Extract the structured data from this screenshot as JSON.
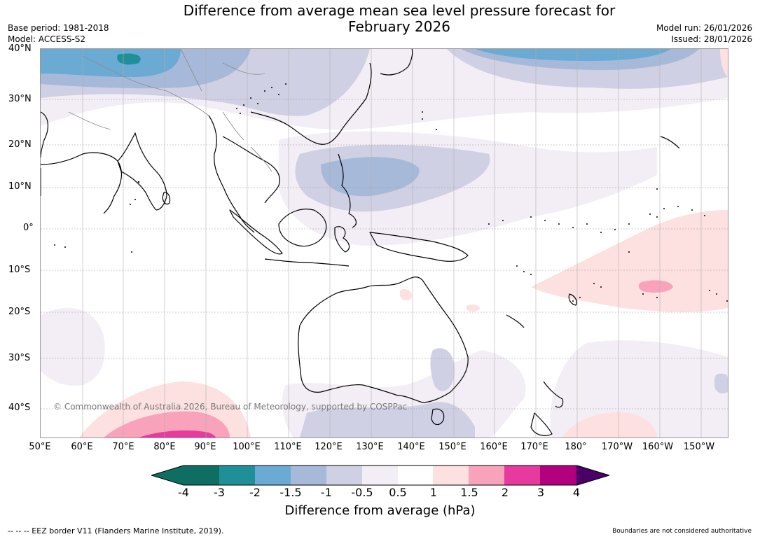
{
  "title": {
    "line1": "Difference from average mean sea level pressure forecast for",
    "line2": "February 2026"
  },
  "meta": {
    "base_period": "Base period: 1981-2018",
    "model": "Model: ACCESS-S2",
    "model_run": "Model run: 26/01/2026",
    "issued": "Issued: 28/01/2026"
  },
  "map": {
    "lat_labels": [
      "40°N",
      "30°N",
      "20°N",
      "10°N",
      "0°",
      "10°S",
      "20°S",
      "30°S",
      "40°S"
    ],
    "lon_labels": [
      "50°E",
      "60°E",
      "70°E",
      "80°E",
      "90°E",
      "100°E",
      "110°E",
      "120°E",
      "130°E",
      "140°E",
      "150°E",
      "160°E",
      "170°E",
      "180°",
      "170°W",
      "160°W",
      "150°W"
    ],
    "copyright": "© Commonwealth of Australia 2026, Bureau of Meteorology, supported by COSPPac",
    "colors": {
      "neg4": "#0e6e62",
      "neg3": "#1f8f98",
      "neg2": "#6aaad3",
      "neg15": "#a6b9d9",
      "neg1": "#cfd0e4",
      "neg05": "#f3eef5",
      "zero": "#ffffff",
      "pos05": "#fde0e0",
      "pos1": "#f8a3bb",
      "pos15": "#e7399e",
      "pos2": "#b3007e",
      "pos3": "#7a0079",
      "pos4": "#4a0066"
    }
  },
  "colorbar": {
    "ticks": [
      "-4",
      "-3",
      "-2",
      "-1.5",
      "-1",
      "-0.5",
      "0.5",
      "1",
      "1.5",
      "2",
      "3",
      "4"
    ],
    "label": "Difference from average (hPa)"
  },
  "footer": {
    "eez": "--  --  -- EEZ border V11 (Flanders Marine Institute, 2019).",
    "boundaries": "Boundaries are not considered authoritative"
  }
}
